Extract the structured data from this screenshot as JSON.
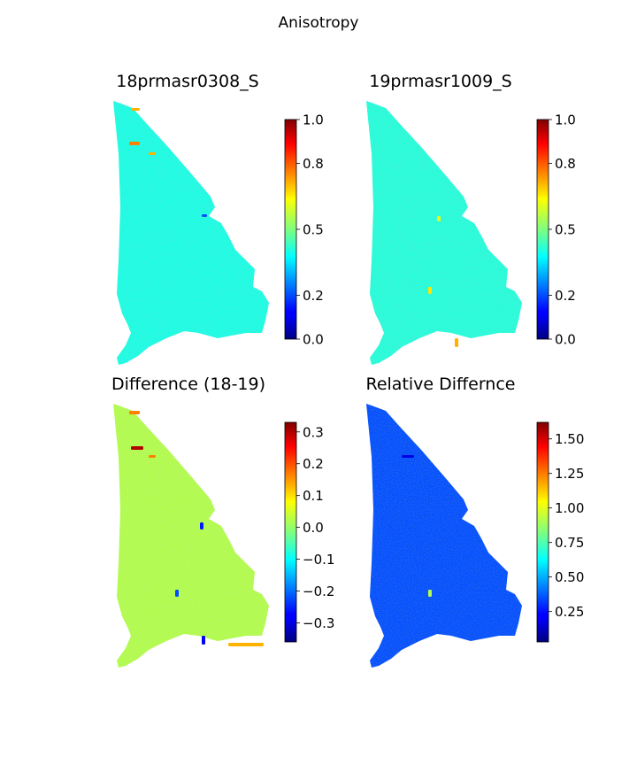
{
  "figure": {
    "title": "Anisotropy"
  },
  "chart_data": [
    {
      "type": "heatmap",
      "title": "18prmasr0308_S",
      "colormap": "jet",
      "dominant_value": 0.4,
      "colorbar": {
        "ticks": [
          0.0,
          0.2,
          0.5,
          0.8,
          1.0
        ],
        "tick_labels": [
          "0.0",
          "0.2",
          "0.5",
          "0.8",
          "1.0"
        ],
        "range": [
          0.0,
          1.0
        ]
      }
    },
    {
      "type": "heatmap",
      "title": "19prmasr1009_S",
      "colormap": "jet",
      "dominant_value": 0.41,
      "colorbar": {
        "ticks": [
          0.0,
          0.2,
          0.5,
          0.8,
          1.0
        ],
        "tick_labels": [
          "0.0",
          "0.2",
          "0.5",
          "0.8",
          "1.0"
        ],
        "range": [
          0.0,
          1.0
        ]
      }
    },
    {
      "type": "heatmap",
      "title": "Difference (18-19)",
      "colormap": "jet",
      "dominant_value": 0.02,
      "colorbar": {
        "ticks": [
          -0.3,
          -0.2,
          -0.1,
          0.0,
          0.1,
          0.2,
          0.3
        ],
        "tick_labels": [
          "−0.3",
          "−0.2",
          "−0.1",
          "0.0",
          "0.1",
          "0.2",
          "0.3"
        ],
        "range": [
          -0.36,
          0.33
        ]
      }
    },
    {
      "type": "heatmap",
      "title": "Relative Differnce",
      "colormap": "jet",
      "dominant_value": 0.35,
      "colorbar": {
        "ticks": [
          0.25,
          0.5,
          0.75,
          1.0,
          1.25,
          1.5
        ],
        "tick_labels": [
          "0.25",
          "0.50",
          "0.75",
          "1.00",
          "1.25",
          "1.50"
        ],
        "range": [
          0.03,
          1.62
        ]
      }
    }
  ]
}
